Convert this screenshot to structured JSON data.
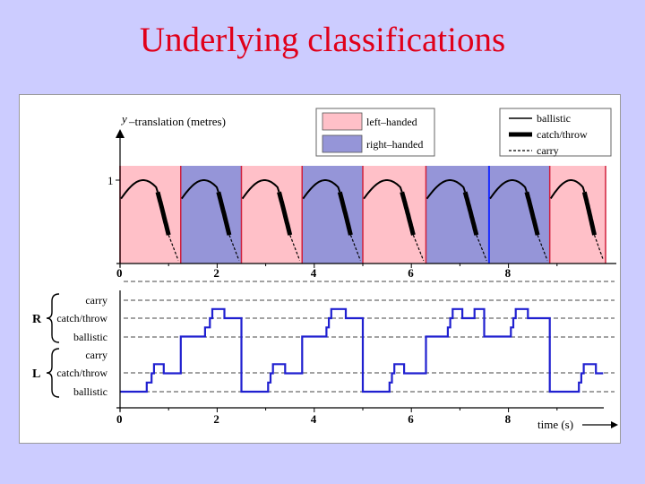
{
  "title": "Underlying classifications",
  "top_plot": {
    "ylabel_symbol": "y",
    "ylabel_text": "–translation (metres)",
    "y_tick": "1",
    "x_ticks": [
      "0",
      "2",
      "4",
      "6",
      "8"
    ]
  },
  "shading_legend": {
    "left": "left–handed",
    "right": "right–handed",
    "left_color": "#ffc0c8",
    "right_color": "#9595d8"
  },
  "line_legend": {
    "ballistic": "ballistic",
    "catch_throw": "catch/throw",
    "carry": "carry"
  },
  "bottom_plot": {
    "level_labels": [
      "carry",
      "catch/throw",
      "ballistic",
      "carry",
      "catch/throw",
      "ballistic"
    ],
    "hand_right": "R",
    "hand_left": "L",
    "x_ticks": [
      "0",
      "2",
      "4",
      "6",
      "8"
    ],
    "xlabel": "time (s)",
    "trace_color": "#2020d0"
  },
  "chart_data": [
    {
      "type": "line",
      "title": "",
      "xlabel": "",
      "ylabel": "y–translation (metres)",
      "xlim": [
        0,
        10
      ],
      "x_ticks": [
        0,
        2,
        4,
        6,
        8
      ],
      "y_ticks": [
        1
      ],
      "hand_segments": [
        {
          "hand": "left",
          "start": 0.0,
          "end": 1.25
        },
        {
          "hand": "right",
          "start": 1.25,
          "end": 2.5
        },
        {
          "hand": "left",
          "start": 2.5,
          "end": 3.75
        },
        {
          "hand": "right",
          "start": 3.75,
          "end": 5.0
        },
        {
          "hand": "left",
          "start": 5.0,
          "end": 6.3
        },
        {
          "hand": "right",
          "start": 6.3,
          "end": 7.6
        },
        {
          "hand": "right",
          "start": 7.6,
          "end": 8.85
        },
        {
          "hand": "left",
          "start": 8.85,
          "end": 10.0
        }
      ],
      "series": [
        {
          "name": "ballistic",
          "style": "solid"
        },
        {
          "name": "catch/throw",
          "style": "thick"
        },
        {
          "name": "carry",
          "style": "dashed"
        }
      ]
    },
    {
      "type": "line",
      "title": "",
      "xlabel": "time (s)",
      "ylabel": "",
      "xlim": [
        0,
        10
      ],
      "x_ticks": [
        0,
        2,
        4,
        6,
        8
      ],
      "categories": [
        "L ballistic",
        "L catch/throw",
        "L carry",
        "R ballistic",
        "R catch/throw",
        "R carry"
      ],
      "series": [
        {
          "name": "",
          "points": [
            [
              0.0,
              0
            ],
            [
              0.55,
              0
            ],
            [
              0.55,
              0.5
            ],
            [
              0.65,
              0.5
            ],
            [
              0.65,
              1
            ],
            [
              0.7,
              1
            ],
            [
              0.7,
              1.5
            ],
            [
              0.9,
              1.5
            ],
            [
              0.9,
              1
            ],
            [
              1.25,
              1
            ],
            [
              1.25,
              3
            ],
            [
              1.75,
              3
            ],
            [
              1.75,
              3.5
            ],
            [
              1.85,
              3.5
            ],
            [
              1.85,
              4
            ],
            [
              1.9,
              4
            ],
            [
              1.9,
              4.5
            ],
            [
              2.15,
              4.5
            ],
            [
              2.15,
              4
            ],
            [
              2.5,
              4
            ],
            [
              2.5,
              0
            ],
            [
              3.05,
              0
            ],
            [
              3.05,
              0.5
            ],
            [
              3.1,
              0.5
            ],
            [
              3.1,
              1
            ],
            [
              3.15,
              1
            ],
            [
              3.15,
              1.5
            ],
            [
              3.4,
              1.5
            ],
            [
              3.4,
              1
            ],
            [
              3.75,
              1
            ],
            [
              3.75,
              3
            ],
            [
              4.25,
              3
            ],
            [
              4.25,
              3.5
            ],
            [
              4.3,
              3.5
            ],
            [
              4.3,
              4
            ],
            [
              4.35,
              4
            ],
            [
              4.35,
              4.5
            ],
            [
              4.65,
              4.5
            ],
            [
              4.65,
              4
            ],
            [
              5.0,
              4
            ],
            [
              5.0,
              0
            ],
            [
              5.55,
              0
            ],
            [
              5.55,
              0.5
            ],
            [
              5.6,
              0.5
            ],
            [
              5.6,
              1
            ],
            [
              5.65,
              1
            ],
            [
              5.65,
              1.5
            ],
            [
              5.85,
              1.5
            ],
            [
              5.85,
              1
            ],
            [
              6.3,
              1
            ],
            [
              6.3,
              3
            ],
            [
              6.75,
              3
            ],
            [
              6.75,
              3.5
            ],
            [
              6.8,
              3.5
            ],
            [
              6.8,
              4
            ],
            [
              6.85,
              4
            ],
            [
              6.85,
              4.5
            ],
            [
              7.05,
              4.5
            ],
            [
              7.05,
              4
            ],
            [
              7.3,
              4
            ],
            [
              7.3,
              4.5
            ],
            [
              7.5,
              4.5
            ],
            [
              7.5,
              3
            ],
            [
              8.05,
              3
            ],
            [
              8.05,
              3.5
            ],
            [
              8.1,
              3.5
            ],
            [
              8.1,
              4
            ],
            [
              8.15,
              4
            ],
            [
              8.15,
              4.5
            ],
            [
              8.4,
              4.5
            ],
            [
              8.4,
              4
            ],
            [
              8.85,
              4
            ],
            [
              8.85,
              0
            ],
            [
              9.45,
              0
            ],
            [
              9.45,
              0.5
            ],
            [
              9.5,
              0.5
            ],
            [
              9.5,
              1
            ],
            [
              9.55,
              1
            ],
            [
              9.55,
              1.5
            ],
            [
              9.8,
              1.5
            ],
            [
              9.8,
              1
            ],
            [
              9.95,
              1
            ]
          ]
        }
      ]
    }
  ]
}
